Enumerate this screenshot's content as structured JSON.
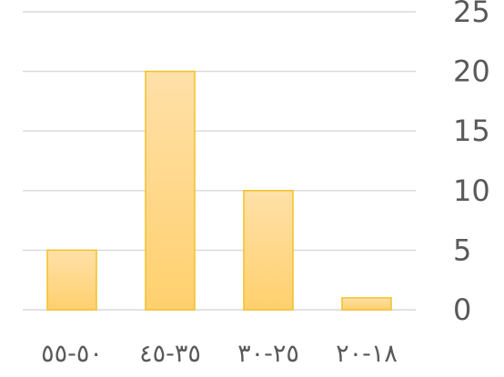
{
  "chart_data": {
    "type": "bar",
    "categories": [
      "١٨-٢٠",
      "٢٥-٣٠",
      "٣٥-٤٥",
      "٥٠-٥٥"
    ],
    "values": [
      1,
      10,
      20,
      5
    ],
    "title": "",
    "xlabel": "",
    "ylabel": "",
    "ylim": [
      0,
      25
    ],
    "yticks": [
      0,
      5,
      10,
      15,
      20,
      25
    ],
    "grid": true,
    "legend": "none",
    "bar_color": "#ffd589",
    "bar_edge_color": "#f2c029",
    "axis_direction": "right-to-left"
  }
}
